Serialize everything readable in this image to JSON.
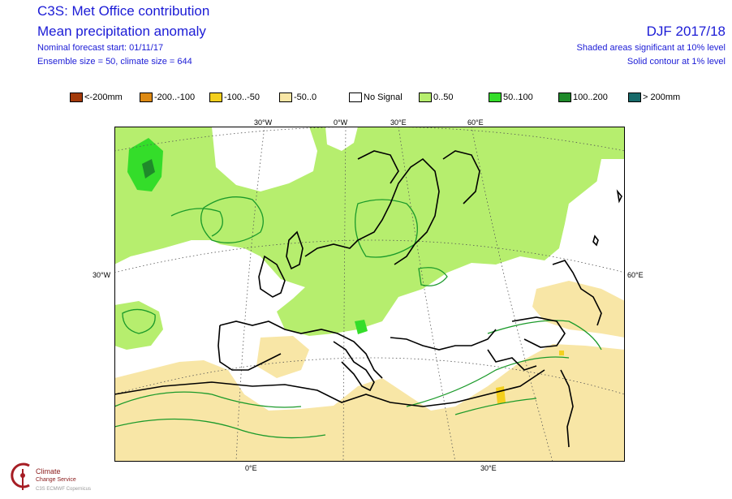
{
  "header": {
    "title": "C3S: Met Office contribution",
    "subtitle": "Mean precipitation anomaly",
    "forecast_start": "Nominal forecast start: 01/11/17",
    "ensemble": "Ensemble size = 50, climate size = 644",
    "season": "DJF 2017/18",
    "sig_note_1": "Shaded areas significant at 10% level",
    "sig_note_2": "Solid contour at 1% level"
  },
  "legend": [
    {
      "label": "<-200mm",
      "color": "#a33a0a"
    },
    {
      "label": "-200..-100",
      "color": "#dd8a14"
    },
    {
      "label": "-100..-50",
      "color": "#f3cf1e"
    },
    {
      "label": "-50..0",
      "color": "#f8e6a6"
    },
    {
      "label": "No Signal",
      "color": "#ffffff"
    },
    {
      "label": "0..50",
      "color": "#b6ee6e"
    },
    {
      "label": "50..100",
      "color": "#34dd2a"
    },
    {
      "label": "100..200",
      "color": "#1f8a2a"
    },
    {
      "label": "> 200mm",
      "color": "#176a6a"
    }
  ],
  "map_labels": {
    "lon_top_30w": "30°W",
    "lon_top_0w": "0°W",
    "lon_top_30e": "30°E",
    "lon_top_60e": "60°E",
    "lat_left_30w": "30°W",
    "lat_right_60e": "60°E",
    "lon_bottom_0e": "0°E",
    "lon_bottom_30e": "30°E"
  },
  "logo": {
    "line1": "Climate",
    "line2": "Change Service",
    "line3": "C3S  ECMWF  Copernicus"
  }
}
